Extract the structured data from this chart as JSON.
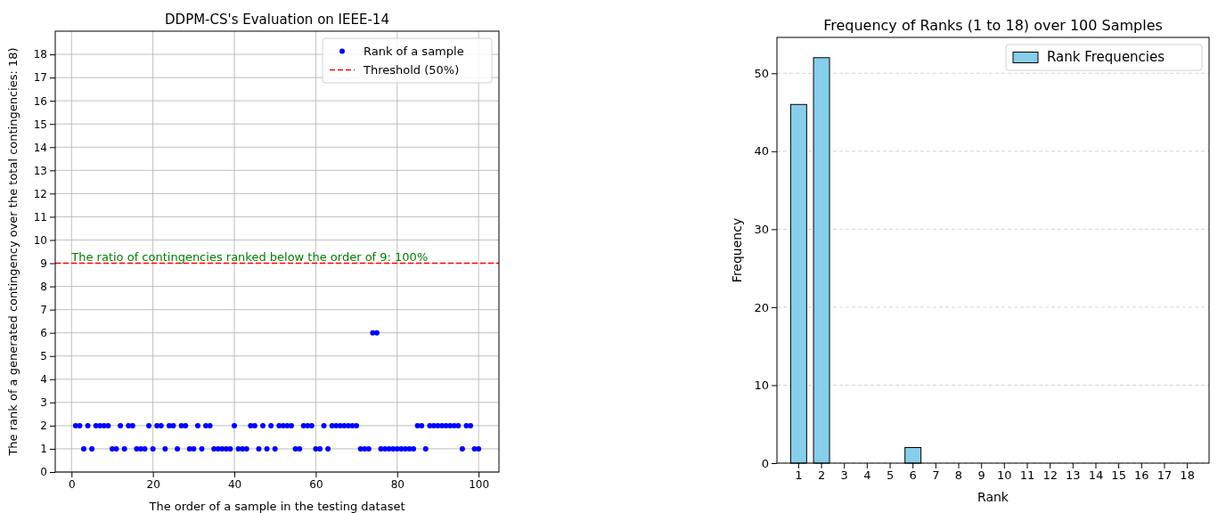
{
  "chart_data": [
    {
      "type": "scatter",
      "title": "DDPM-CS's Evaluation on IEEE-14",
      "xlabel": "The order of a sample in the testing dataset",
      "ylabel": "The rank of a generated contingency over the total contingencies: 18)",
      "x": [
        1,
        2,
        3,
        4,
        5,
        6,
        7,
        8,
        9,
        10,
        11,
        12,
        13,
        14,
        15,
        16,
        17,
        18,
        19,
        20,
        21,
        22,
        23,
        24,
        25,
        26,
        27,
        28,
        29,
        30,
        31,
        32,
        33,
        34,
        35,
        36,
        37,
        38,
        39,
        40,
        41,
        42,
        43,
        44,
        45,
        46,
        47,
        48,
        49,
        50,
        51,
        52,
        53,
        54,
        55,
        56,
        57,
        58,
        59,
        60,
        61,
        62,
        63,
        64,
        65,
        66,
        67,
        68,
        69,
        70,
        71,
        72,
        73,
        74,
        75,
        76,
        77,
        78,
        79,
        80,
        81,
        82,
        83,
        84,
        85,
        86,
        87,
        88,
        89,
        90,
        91,
        92,
        93,
        94,
        95,
        96,
        97,
        98,
        99,
        100
      ],
      "series": [
        {
          "name": "Rank of a sample",
          "color": "#0000ff",
          "values": [
            2,
            2,
            1,
            2,
            1,
            2,
            2,
            2,
            2,
            1,
            1,
            2,
            1,
            2,
            2,
            1,
            1,
            1,
            2,
            1,
            2,
            2,
            1,
            2,
            2,
            1,
            2,
            2,
            1,
            1,
            2,
            1,
            2,
            2,
            1,
            1,
            1,
            1,
            1,
            2,
            1,
            1,
            1,
            2,
            2,
            1,
            2,
            1,
            2,
            1,
            2,
            2,
            2,
            2,
            1,
            1,
            2,
            2,
            2,
            1,
            1,
            2,
            1,
            2,
            2,
            2,
            2,
            2,
            2,
            2,
            1,
            1,
            1,
            6,
            6,
            1,
            1,
            1,
            1,
            1,
            1,
            1,
            1,
            1,
            2,
            2,
            1,
            2,
            2,
            2,
            2,
            2,
            2,
            2,
            2,
            1,
            2,
            2,
            1,
            1
          ]
        }
      ],
      "marker": "circle",
      "xlim": [
        -4,
        105
      ],
      "xticks": [
        0,
        20,
        40,
        60,
        80,
        100
      ],
      "ylim": [
        0,
        19
      ],
      "yticks": [
        0,
        1,
        2,
        3,
        4,
        5,
        6,
        7,
        8,
        9,
        10,
        11,
        12,
        13,
        14,
        15,
        16,
        17,
        18
      ],
      "grid": true,
      "legend": "top right",
      "ref_lines": [
        {
          "axis": "y",
          "value": 9,
          "label": "Threshold (50%)",
          "color": "#ff0000",
          "line_style": "dashed"
        }
      ],
      "annotations": [
        {
          "text": "The ratio of contingencies ranked below the order of 9: 100%",
          "x": 0,
          "y": 9
        }
      ]
    },
    {
      "type": "bar",
      "title": "Frequency of Ranks (1 to 18) over 100 Samples",
      "xlabel": "Rank",
      "ylabel": "Frequency",
      "categories": [
        "1",
        "2",
        "3",
        "4",
        "5",
        "6",
        "7",
        "8",
        "9",
        "10",
        "11",
        "12",
        "13",
        "14",
        "15",
        "16",
        "17",
        "18"
      ],
      "series": [
        {
          "name": "Rank Frequencies",
          "color": "#87ceeb",
          "values": [
            46,
            52,
            0,
            0,
            0,
            2,
            0,
            0,
            0,
            0,
            0,
            0,
            0,
            0,
            0,
            0,
            0,
            0
          ]
        }
      ],
      "ylim": [
        0,
        54.6
      ],
      "yticks": [
        0,
        10,
        20,
        30,
        40,
        50
      ],
      "grid": "y",
      "legend": "top right"
    }
  ]
}
